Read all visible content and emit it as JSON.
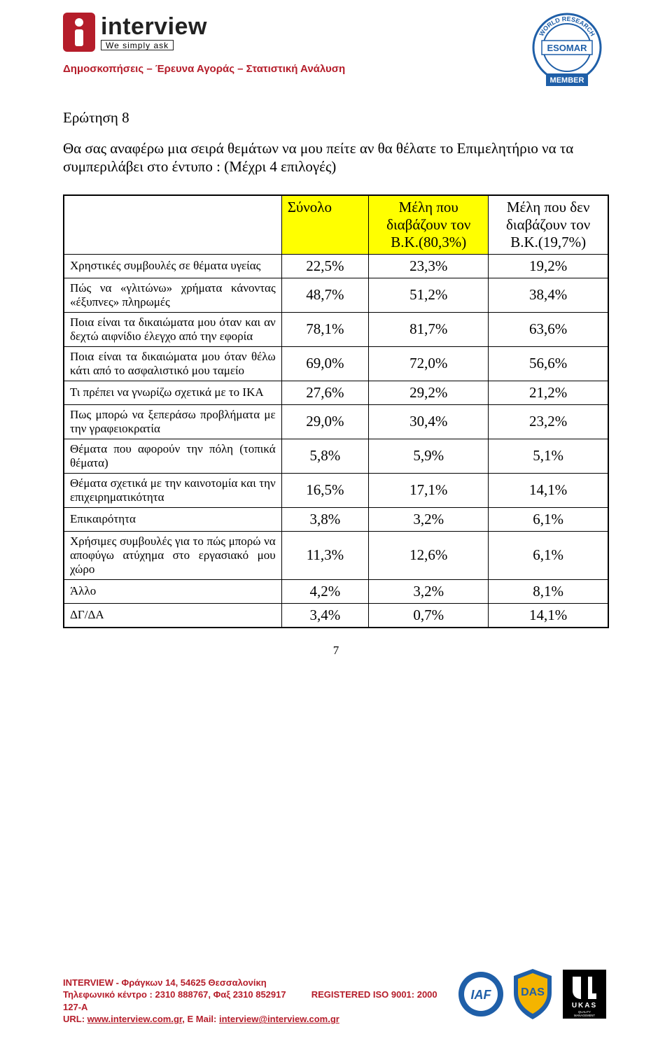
{
  "brand": {
    "name": "interview",
    "tagline": "We simply ask",
    "subhead": "Δημοσκοπήσεις – Έρευνα Αγοράς – Στατιστική Ανάλυση",
    "brand_color": "#b51d2a",
    "accent_yellow": "#ffff00"
  },
  "esomar": {
    "top": "ESOMAR",
    "ring": "WORLD RESEARCH",
    "member": "MEMBER"
  },
  "question": {
    "title": "Ερώτηση 8",
    "body": "Θα σας αναφέρω μια σειρά θεμάτων να μου πείτε αν θα θέλατε το Επιμελητήριο να τα συμπεριλάβει στο έντυπο : (Μέχρι 4 επιλογές)"
  },
  "table": {
    "headers": {
      "total": "Σύνολο",
      "col2": "Μέλη που διαβάζουν τον Β.Κ.(80,3%)",
      "col3": "Μέλη που δεν διαβάζουν τον Β.Κ.(19,7%)"
    },
    "rows": [
      {
        "label": "Χρηστικές συμβουλές σε θέματα υγείας",
        "v": [
          "22,5%",
          "23,3%",
          "19,2%"
        ]
      },
      {
        "label": "Πώς να «γλιτώνω» χρήματα κάνοντας «έξυπνες» πληρωμές",
        "v": [
          "48,7%",
          "51,2%",
          "38,4%"
        ]
      },
      {
        "label": "Ποια είναι τα δικαιώματα μου όταν και αν δεχτώ αιφνίδιο έλεγχο από την εφορία",
        "v": [
          "78,1%",
          "81,7%",
          "63,6%"
        ]
      },
      {
        "label": "Ποια είναι τα δικαιώματα μου όταν θέλω κάτι από το ασφαλιστικό μου ταμείο",
        "v": [
          "69,0%",
          "72,0%",
          "56,6%"
        ]
      },
      {
        "label": "Τι πρέπει να γνωρίζω σχετικά με το ΙΚΑ",
        "v": [
          "27,6%",
          "29,2%",
          "21,2%"
        ]
      },
      {
        "label": "Πως μπορώ να ξεπεράσω προβλήματα με την γραφειοκρατία",
        "v": [
          "29,0%",
          "30,4%",
          "23,2%"
        ]
      },
      {
        "label": "Θέματα που αφορούν την πόλη (τοπικά θέματα)",
        "v": [
          "5,8%",
          "5,9%",
          "5,1%"
        ]
      },
      {
        "label": "Θέματα σχετικά με την καινοτομία και την επιχειρηματικότητα",
        "v": [
          "16,5%",
          "17,1%",
          "14,1%"
        ]
      },
      {
        "label": "Επικαιρότητα",
        "v": [
          "3,8%",
          "3,2%",
          "6,1%"
        ]
      },
      {
        "label": "Χρήσιμες συμβουλές για το πώς μπορώ να αποφύγω ατύχημα στο εργασιακό μου χώρο",
        "v": [
          "11,3%",
          "12,6%",
          "6,1%"
        ]
      },
      {
        "label": "Άλλο",
        "v": [
          "4,2%",
          "3,2%",
          "8,1%"
        ]
      },
      {
        "label": "ΔΓ/ΔΑ",
        "v": [
          "3,4%",
          "0,7%",
          "14,1%"
        ]
      }
    ],
    "col_widths": [
      "40%",
      "16%",
      "22%",
      "22%"
    ],
    "header_bg_cols_1_2": "#ffff00",
    "border_color": "#000000",
    "label_fontsize": 17,
    "value_fontsize": 21
  },
  "page_number": "7",
  "footer": {
    "line1": "INTERVIEW - Φράγκων 14, 54625 Θεσσαλονίκη",
    "line2_left": "Τηλεφωνικό κέντρο : 2310 888767, Φαξ 2310 852917",
    "line2_right": "REGISTERED ISO 9001: 2000",
    "line2_code": "127-A",
    "line3_left": "URL: ",
    "line3_url": "www.interview.com.gr",
    "line3_mid": ", E Mail: ",
    "line3_email": "interview@interview.com.gr"
  },
  "badges": {
    "iaf": "IAF",
    "das": "DAS",
    "ukas": "UKAS",
    "ukas_sub": "QUALITY MANAGEMENT"
  }
}
